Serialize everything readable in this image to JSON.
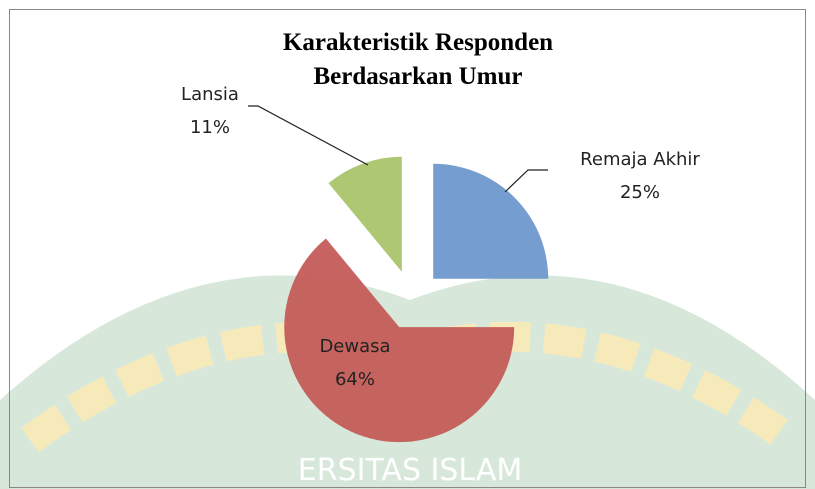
{
  "chart_data": {
    "type": "pie",
    "title": [
      "Karakteristik Responden",
      "Berdasarkan Umur"
    ],
    "categories": [
      "Remaja Akhir",
      "Dewasa",
      "Lansia"
    ],
    "values": [
      25,
      64,
      11
    ],
    "value_labels": [
      "25%",
      "64%",
      "11%"
    ],
    "colors": [
      "#6f98cc",
      "#c45c59",
      "#a9c46c"
    ]
  }
}
